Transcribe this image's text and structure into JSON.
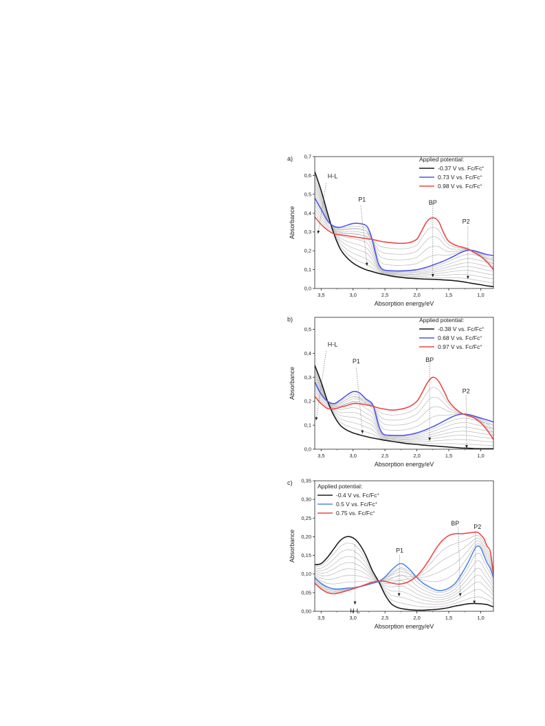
{
  "chart_data": [
    {
      "type": "line",
      "panel_label": "a)",
      "xlabel": "Absorption energy/eV",
      "ylabel": "Absorbance",
      "xlim": [
        3.6,
        0.8
      ],
      "ylim": [
        0,
        0.7
      ],
      "x_ticks": [
        3.5,
        3.0,
        2.5,
        2.0,
        1.5,
        1.0
      ],
      "x_tick_labels": [
        "3,5",
        "3,0",
        "2,5",
        "2,0",
        "1,5",
        "1,0"
      ],
      "y_ticks": [
        0,
        0.1,
        0.2,
        0.3,
        0.4,
        0.5,
        0.6,
        0.7
      ],
      "y_tick_labels": [
        "0,0",
        "0,1",
        "0,2",
        "0,3",
        "0,4",
        "0,5",
        "0,6",
        "0,7"
      ],
      "legend_title": "Applied potential:",
      "legend_placement": "top-right",
      "colors": {
        "black": "#1a1a1a",
        "blue": "#4f55e8",
        "red": "#ee4444",
        "grey": "#b8b8b8"
      },
      "series": [
        {
          "name": "-0.37 V vs. Fc/Fc",
          "sup": "+",
          "color": "black",
          "x": [
            3.6,
            3.5,
            3.4,
            3.3,
            3.2,
            3.1,
            3.0,
            2.9,
            2.8,
            2.7,
            2.6,
            2.5,
            2.4,
            2.3,
            2.2,
            2.1,
            2.0,
            1.9,
            1.8,
            1.7,
            1.6,
            1.5,
            1.4,
            1.3,
            1.2,
            1.1,
            1.0,
            0.9,
            0.8
          ],
          "y": [
            0.62,
            0.52,
            0.4,
            0.29,
            0.21,
            0.165,
            0.135,
            0.115,
            0.1,
            0.09,
            0.08,
            0.073,
            0.066,
            0.061,
            0.057,
            0.054,
            0.052,
            0.05,
            0.049,
            0.048,
            0.046,
            0.044,
            0.041,
            0.037,
            0.031,
            0.025,
            0.02,
            0.014,
            0.01
          ]
        },
        {
          "name": "0.73 V vs. Fc/Fc",
          "sup": "+",
          "color": "blue",
          "x": [
            3.6,
            3.5,
            3.4,
            3.3,
            3.2,
            3.1,
            3.0,
            2.9,
            2.8,
            2.75,
            2.7,
            2.65,
            2.6,
            2.55,
            2.5,
            2.4,
            2.3,
            2.2,
            2.1,
            2.0,
            1.9,
            1.8,
            1.7,
            1.6,
            1.5,
            1.4,
            1.3,
            1.2,
            1.1,
            1.0,
            0.9,
            0.8
          ],
          "y": [
            0.48,
            0.42,
            0.36,
            0.33,
            0.325,
            0.335,
            0.345,
            0.345,
            0.335,
            0.31,
            0.26,
            0.19,
            0.13,
            0.105,
            0.097,
            0.094,
            0.093,
            0.094,
            0.096,
            0.1,
            0.108,
            0.118,
            0.13,
            0.143,
            0.158,
            0.175,
            0.192,
            0.203,
            0.2,
            0.19,
            0.18,
            0.175
          ]
        },
        {
          "name": "0.98 V vs. Fc/Fc",
          "sup": "+",
          "color": "red",
          "x": [
            3.6,
            3.5,
            3.4,
            3.3,
            3.2,
            3.1,
            3.0,
            2.9,
            2.8,
            2.7,
            2.6,
            2.5,
            2.4,
            2.3,
            2.2,
            2.1,
            2.0,
            1.95,
            1.9,
            1.85,
            1.8,
            1.75,
            1.7,
            1.65,
            1.6,
            1.55,
            1.5,
            1.4,
            1.3,
            1.2,
            1.1,
            1.0,
            0.9,
            0.8
          ],
          "y": [
            0.38,
            0.34,
            0.31,
            0.29,
            0.285,
            0.28,
            0.275,
            0.27,
            0.265,
            0.26,
            0.253,
            0.247,
            0.243,
            0.24,
            0.24,
            0.245,
            0.262,
            0.29,
            0.322,
            0.352,
            0.37,
            0.375,
            0.37,
            0.35,
            0.31,
            0.275,
            0.25,
            0.23,
            0.22,
            0.21,
            0.19,
            0.17,
            0.14,
            0.1
          ]
        }
      ],
      "annotations": [
        {
          "text": "H-L",
          "x": 3.32,
          "y": 0.6,
          "from": [
            3.42,
            0.56
          ],
          "to": [
            3.55,
            0.29
          ]
        },
        {
          "text": "P1",
          "x": 2.86,
          "y": 0.475,
          "from": [
            2.88,
            0.44
          ],
          "to": [
            2.78,
            0.12
          ]
        },
        {
          "text": "BP",
          "x": 1.75,
          "y": 0.46,
          "from": [
            1.75,
            0.45
          ],
          "to": [
            1.75,
            0.06
          ]
        },
        {
          "text": "P2",
          "x": 1.23,
          "y": 0.36,
          "from": [
            1.2,
            0.33
          ],
          "to": [
            1.2,
            0.05
          ]
        }
      ]
    },
    {
      "type": "line",
      "panel_label": "b)",
      "xlabel": "Absorption energy/eV",
      "ylabel": "Absorbance",
      "xlim": [
        3.6,
        0.8
      ],
      "ylim": [
        0,
        0.55
      ],
      "x_ticks": [
        3.5,
        3.0,
        2.5,
        2.0,
        1.5,
        1.0
      ],
      "x_tick_labels": [
        "3,5",
        "3,0",
        "2,5",
        "2,0",
        "1,5",
        "1,0"
      ],
      "y_ticks": [
        0,
        0.1,
        0.2,
        0.3,
        0.4,
        0.5
      ],
      "y_tick_labels": [
        "0,0",
        "0,1",
        "0,2",
        "0,3",
        "0,4",
        "0,5"
      ],
      "legend_title": "Applied potential:",
      "legend_placement": "top-right",
      "colors": {
        "black": "#1a1a1a",
        "blue": "#4f55e8",
        "red": "#ee4444",
        "grey": "#b8b8b8"
      },
      "series": [
        {
          "name": "-0.38 V vs. Fc/Fc",
          "sup": "+",
          "color": "black",
          "x": [
            3.6,
            3.5,
            3.4,
            3.3,
            3.2,
            3.1,
            3.0,
            2.9,
            2.8,
            2.7,
            2.6,
            2.5,
            2.4,
            2.3,
            2.2,
            2.1,
            2.0,
            1.9,
            1.8,
            1.7,
            1.6,
            1.5,
            1.4,
            1.3,
            1.2,
            1.1,
            1.0,
            0.9,
            0.8
          ],
          "y": [
            0.35,
            0.28,
            0.2,
            0.14,
            0.1,
            0.08,
            0.068,
            0.06,
            0.053,
            0.047,
            0.042,
            0.037,
            0.033,
            0.029,
            0.025,
            0.022,
            0.02,
            0.017,
            0.015,
            0.013,
            0.011,
            0.009,
            0.007,
            0.005,
            0.004,
            0.003,
            0.002,
            0.002,
            0.002
          ]
        },
        {
          "name": "0.68 V vs. Fc/Fc",
          "sup": "+",
          "color": "blue",
          "x": [
            3.6,
            3.5,
            3.4,
            3.3,
            3.2,
            3.1,
            3.0,
            2.9,
            2.8,
            2.7,
            2.65,
            2.6,
            2.55,
            2.5,
            2.4,
            2.3,
            2.2,
            2.1,
            2.0,
            1.9,
            1.8,
            1.7,
            1.6,
            1.5,
            1.4,
            1.3,
            1.2,
            1.1,
            1.0,
            0.9,
            0.8
          ],
          "y": [
            0.28,
            0.23,
            0.2,
            0.19,
            0.205,
            0.225,
            0.24,
            0.235,
            0.21,
            0.19,
            0.15,
            0.1,
            0.07,
            0.06,
            0.058,
            0.057,
            0.058,
            0.062,
            0.068,
            0.077,
            0.088,
            0.1,
            0.114,
            0.128,
            0.14,
            0.146,
            0.145,
            0.138,
            0.13,
            0.122,
            0.113
          ]
        },
        {
          "name": "0.97 V vs. Fc/Fc",
          "sup": "+",
          "color": "red",
          "x": [
            3.6,
            3.5,
            3.4,
            3.3,
            3.2,
            3.1,
            3.0,
            2.9,
            2.8,
            2.7,
            2.6,
            2.5,
            2.4,
            2.3,
            2.2,
            2.1,
            2.0,
            1.95,
            1.9,
            1.85,
            1.8,
            1.75,
            1.7,
            1.65,
            1.6,
            1.55,
            1.5,
            1.4,
            1.3,
            1.2,
            1.1,
            1.0,
            0.9,
            0.8
          ],
          "y": [
            0.22,
            0.19,
            0.17,
            0.168,
            0.175,
            0.182,
            0.19,
            0.19,
            0.185,
            0.18,
            0.172,
            0.167,
            0.163,
            0.165,
            0.17,
            0.18,
            0.2,
            0.22,
            0.245,
            0.27,
            0.29,
            0.3,
            0.295,
            0.28,
            0.255,
            0.228,
            0.2,
            0.17,
            0.15,
            0.14,
            0.13,
            0.11,
            0.08,
            0.04
          ]
        }
      ],
      "annotations": [
        {
          "text": "H-L",
          "x": 3.32,
          "y": 0.44,
          "from": [
            3.42,
            0.41
          ],
          "to": [
            3.58,
            0.12
          ]
        },
        {
          "text": "P1",
          "x": 2.95,
          "y": 0.37,
          "from": [
            2.95,
            0.34
          ],
          "to": [
            2.85,
            0.065
          ]
        },
        {
          "text": "BP",
          "x": 1.8,
          "y": 0.375,
          "from": [
            1.8,
            0.365
          ],
          "to": [
            1.8,
            0.035
          ]
        },
        {
          "text": "P2",
          "x": 1.23,
          "y": 0.245,
          "from": [
            1.23,
            0.225
          ],
          "to": [
            1.22,
            0.004
          ]
        }
      ]
    },
    {
      "type": "line",
      "panel_label": "c)",
      "xlabel": "Absorption energy/eV",
      "ylabel": "Absorbance",
      "xlim": [
        3.6,
        0.8
      ],
      "ylim": [
        0,
        0.35
      ],
      "x_ticks": [
        3.5,
        3.0,
        2.5,
        2.0,
        1.5,
        1.0
      ],
      "x_tick_labels": [
        "3,5",
        "3,0",
        "2,5",
        "2,0",
        "1,5",
        "1,0"
      ],
      "y_ticks": [
        0,
        0.05,
        0.1,
        0.15,
        0.2,
        0.25,
        0.3,
        0.35
      ],
      "y_tick_labels": [
        "0,00",
        "0,05",
        "0,10",
        "0,15",
        "0,20",
        "0,25",
        "0,30",
        "0,35"
      ],
      "legend_title": "Applied potential:",
      "legend_placement": "top-left",
      "colors": {
        "black": "#1a1a1a",
        "blue": "#4f86e8",
        "red": "#ee4444",
        "grey": "#b8b8b8"
      },
      "series": [
        {
          "name": "-0.4 V vs. Fc/Fc",
          "sup": "+",
          "color": "black",
          "x": [
            3.6,
            3.5,
            3.4,
            3.3,
            3.2,
            3.1,
            3.0,
            2.9,
            2.8,
            2.7,
            2.6,
            2.5,
            2.4,
            2.3,
            2.2,
            2.1,
            2.0,
            1.9,
            1.8,
            1.7,
            1.6,
            1.5,
            1.4,
            1.3,
            1.2,
            1.1,
            1.0,
            0.9,
            0.85,
            0.8
          ],
          "y": [
            0.125,
            0.128,
            0.145,
            0.168,
            0.19,
            0.2,
            0.197,
            0.18,
            0.15,
            0.11,
            0.08,
            0.045,
            0.02,
            0.01,
            0.006,
            0.004,
            0.003,
            0.003,
            0.004,
            0.005,
            0.007,
            0.01,
            0.014,
            0.017,
            0.02,
            0.021,
            0.02,
            0.018,
            0.015,
            0.012
          ]
        },
        {
          "name": "0.5 V vs. Fc/Fc",
          "sup": "+",
          "color": "blue",
          "x": [
            3.6,
            3.5,
            3.4,
            3.3,
            3.2,
            3.1,
            3.0,
            2.9,
            2.8,
            2.7,
            2.6,
            2.5,
            2.4,
            2.3,
            2.25,
            2.2,
            2.1,
            2.0,
            1.9,
            1.8,
            1.7,
            1.6,
            1.5,
            1.4,
            1.3,
            1.2,
            1.1,
            1.05,
            1.0,
            0.95,
            0.9,
            0.85,
            0.8
          ],
          "y": [
            0.09,
            0.075,
            0.065,
            0.06,
            0.06,
            0.062,
            0.063,
            0.066,
            0.07,
            0.075,
            0.08,
            0.092,
            0.11,
            0.125,
            0.128,
            0.125,
            0.11,
            0.09,
            0.075,
            0.065,
            0.057,
            0.056,
            0.062,
            0.075,
            0.1,
            0.13,
            0.165,
            0.175,
            0.17,
            0.15,
            0.13,
            0.115,
            0.09
          ]
        },
        {
          "name": "0.75 vs. Fc/Fc",
          "sup": "+",
          "color": "red",
          "x": [
            3.6,
            3.5,
            3.4,
            3.3,
            3.2,
            3.1,
            3.0,
            2.9,
            2.8,
            2.7,
            2.6,
            2.5,
            2.4,
            2.3,
            2.2,
            2.1,
            2.0,
            1.9,
            1.8,
            1.7,
            1.6,
            1.5,
            1.4,
            1.3,
            1.2,
            1.1,
            1.05,
            1.0,
            0.95,
            0.9,
            0.85,
            0.8
          ],
          "y": [
            0.075,
            0.06,
            0.05,
            0.047,
            0.05,
            0.055,
            0.06,
            0.066,
            0.072,
            0.078,
            0.081,
            0.08,
            0.076,
            0.073,
            0.075,
            0.082,
            0.095,
            0.115,
            0.14,
            0.168,
            0.19,
            0.203,
            0.208,
            0.208,
            0.21,
            0.212,
            0.212,
            0.205,
            0.195,
            0.175,
            0.16,
            0.1
          ]
        }
      ],
      "annotations": [
        {
          "text": "P1",
          "x": 2.27,
          "y": 0.165,
          "from": [
            2.27,
            0.15
          ],
          "to": [
            2.28,
            0.04
          ]
        },
        {
          "text": "BP",
          "x": 1.4,
          "y": 0.238,
          "from": [
            1.35,
            0.225
          ],
          "to": [
            1.32,
            0.04
          ]
        },
        {
          "text": "P2",
          "x": 1.05,
          "y": 0.228,
          "from": [
            1.08,
            0.215
          ],
          "to": [
            1.1,
            0.02
          ]
        },
        {
          "text": "H-L",
          "x": 2.97,
          "y": 0.003,
          "from": [
            2.97,
            0.18
          ],
          "to": [
            2.97,
            0.018
          ]
        }
      ]
    }
  ]
}
